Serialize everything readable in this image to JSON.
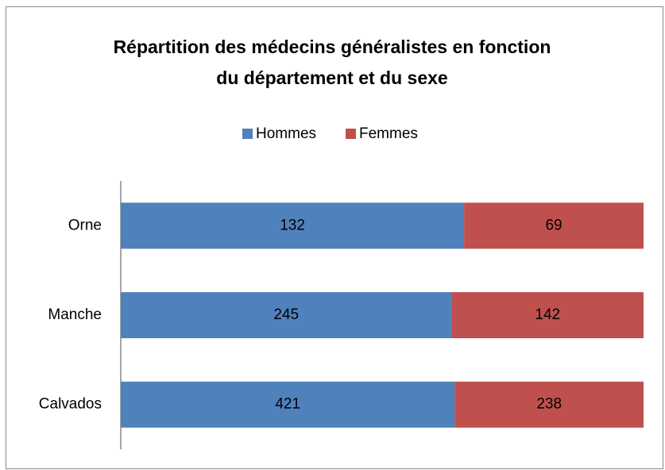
{
  "chart_data": {
    "type": "bar",
    "orientation": "horizontal",
    "stacked": "percent",
    "title": "Répartition des médecins généralistes en fonction du département et du sexe",
    "categories": [
      "Orne",
      "Manche",
      "Calvados"
    ],
    "series": [
      {
        "name": "Hommes",
        "color": "#4f81bd",
        "values": [
          132,
          245,
          421
        ]
      },
      {
        "name": "Femmes",
        "color": "#c0504d",
        "values": [
          69,
          142,
          238
        ]
      }
    ],
    "legend": "top",
    "data_labels": true
  }
}
